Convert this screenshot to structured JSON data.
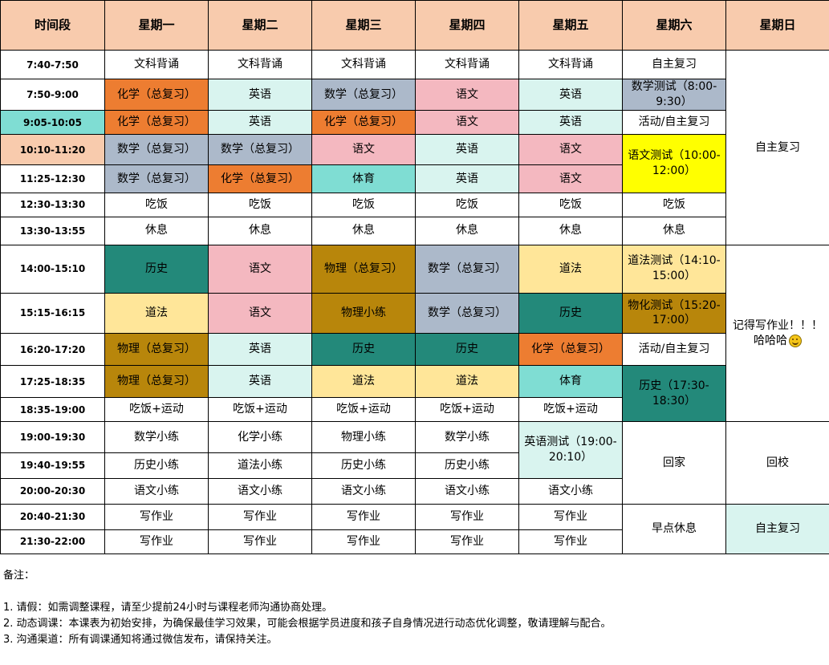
{
  "colors": {
    "header": "#f8cbad",
    "orange": "#ed7d31",
    "lightcyan": "#d9f4ef",
    "slate": "#acb9ca",
    "pink": "#f4b8c0",
    "cyan": "#7fddd3",
    "yellow": "#ffff00",
    "teal": "#23897a",
    "olive": "#b8860b",
    "beige": "#ffe699",
    "peach": "#f8cbad",
    "white": "#ffffff"
  },
  "headers": [
    "时间段",
    "星期一",
    "星期二",
    "星期三",
    "星期四",
    "星期五",
    "星期六",
    "星期日"
  ],
  "times": [
    "7:40-7:50",
    "7:50-9:00",
    "9:05-10:05",
    "10:10-11:20",
    "11:25-12:30",
    "12:30-13:30",
    "13:30-13:55",
    "14:00-15:10",
    "15:15-16:15",
    "16:20-17:20",
    "17:25-18:35",
    "18:35-19:00",
    "19:00-19:30",
    "19:40-19:55",
    "20:00-20:30",
    "20:40-21:30",
    "21:30-22:00"
  ],
  "cells": [
    [
      {
        "t": "文科背诵",
        "bg": "white",
        "c": 1
      },
      {
        "t": "文科背诵",
        "bg": "white",
        "c": 2
      },
      {
        "t": "文科背诵",
        "bg": "white",
        "c": 3
      },
      {
        "t": "文科背诵",
        "bg": "white",
        "c": 4
      },
      {
        "t": "文科背诵",
        "bg": "white",
        "c": 5
      },
      {
        "t": "自主复习",
        "bg": "white",
        "c": 6
      },
      {
        "t": "自主复习",
        "bg": "white",
        "c": 7,
        "rs": 7
      }
    ],
    [
      {
        "t": "化学（总复习）",
        "bg": "orange",
        "c": 1
      },
      {
        "t": "英语",
        "bg": "lightcyan",
        "c": 2
      },
      {
        "t": "数学（总复习）",
        "bg": "slate",
        "c": 3
      },
      {
        "t": "语文",
        "bg": "pink",
        "c": 4
      },
      {
        "t": "英语",
        "bg": "lightcyan",
        "c": 5
      },
      {
        "t": "数学测试（8:00-9:30）",
        "bg": "slate",
        "c": 6
      }
    ],
    [
      {
        "t": "化学（总复习）",
        "bg": "orange",
        "c": 1
      },
      {
        "t": "英语",
        "bg": "lightcyan",
        "c": 2
      },
      {
        "t": "化学（总复习）",
        "bg": "orange",
        "c": 3
      },
      {
        "t": "语文",
        "bg": "pink",
        "c": 4
      },
      {
        "t": "英语",
        "bg": "lightcyan",
        "c": 5
      },
      {
        "t": "活动/自主复习",
        "bg": "white",
        "c": 6
      }
    ],
    [
      {
        "t": "数学（总复习）",
        "bg": "slate",
        "c": 1
      },
      {
        "t": "数学（总复习）",
        "bg": "slate",
        "c": 2
      },
      {
        "t": "语文",
        "bg": "pink",
        "c": 3
      },
      {
        "t": "英语",
        "bg": "lightcyan",
        "c": 4
      },
      {
        "t": "语文",
        "bg": "pink",
        "c": 5
      },
      {
        "t": "语文测试（10:00-12:00）",
        "bg": "yellow",
        "c": 6,
        "rs": 2
      }
    ],
    [
      {
        "t": "数学（总复习）",
        "bg": "slate",
        "c": 1
      },
      {
        "t": "化学（总复习）",
        "bg": "orange",
        "c": 2
      },
      {
        "t": "体育",
        "bg": "cyan",
        "c": 3
      },
      {
        "t": "英语",
        "bg": "lightcyan",
        "c": 4
      },
      {
        "t": "语文",
        "bg": "pink",
        "c": 5
      }
    ],
    [
      {
        "t": "吃饭",
        "bg": "white",
        "c": 1
      },
      {
        "t": "吃饭",
        "bg": "white",
        "c": 2
      },
      {
        "t": "吃饭",
        "bg": "white",
        "c": 3
      },
      {
        "t": "吃饭",
        "bg": "white",
        "c": 4
      },
      {
        "t": "吃饭",
        "bg": "white",
        "c": 5
      },
      {
        "t": "吃饭",
        "bg": "white",
        "c": 6
      }
    ],
    [
      {
        "t": "休息",
        "bg": "white",
        "c": 1
      },
      {
        "t": "休息",
        "bg": "white",
        "c": 2
      },
      {
        "t": "休息",
        "bg": "white",
        "c": 3
      },
      {
        "t": "休息",
        "bg": "white",
        "c": 4
      },
      {
        "t": "休息",
        "bg": "white",
        "c": 5
      },
      {
        "t": "休息",
        "bg": "white",
        "c": 6
      }
    ],
    [
      {
        "t": "历史",
        "bg": "teal",
        "c": 1
      },
      {
        "t": "语文",
        "bg": "pink",
        "c": 2
      },
      {
        "t": "物理（总复习）",
        "bg": "olive",
        "c": 3
      },
      {
        "t": "数学（总复习）",
        "bg": "slate",
        "c": 4
      },
      {
        "t": "道法",
        "bg": "beige",
        "c": 5
      },
      {
        "t": "道法测试（14:10-15:00）",
        "bg": "beige",
        "c": 6
      },
      {
        "t": "记得写作业！！！哈哈哈",
        "bg": "white",
        "c": 7,
        "rs": 5,
        "smile": true
      }
    ],
    [
      {
        "t": "道法",
        "bg": "beige",
        "c": 1
      },
      {
        "t": "语文",
        "bg": "pink",
        "c": 2
      },
      {
        "t": "物理小练",
        "bg": "olive",
        "c": 3
      },
      {
        "t": "数学（总复习）",
        "bg": "slate",
        "c": 4
      },
      {
        "t": "历史",
        "bg": "teal",
        "c": 5
      },
      {
        "t": "物化测试（15:20-17:00）",
        "bg": "olive",
        "c": 6
      }
    ],
    [
      {
        "t": "物理（总复习）",
        "bg": "olive",
        "c": 1
      },
      {
        "t": "英语",
        "bg": "lightcyan",
        "c": 2
      },
      {
        "t": "历史",
        "bg": "teal",
        "c": 3
      },
      {
        "t": "历史",
        "bg": "teal",
        "c": 4
      },
      {
        "t": "化学（总复习）",
        "bg": "orange",
        "c": 5
      },
      {
        "t": "活动/自主复习",
        "bg": "white",
        "c": 6
      }
    ],
    [
      {
        "t": "物理（总复习）",
        "bg": "olive",
        "c": 1
      },
      {
        "t": "英语",
        "bg": "lightcyan",
        "c": 2
      },
      {
        "t": "道法",
        "bg": "beige",
        "c": 3
      },
      {
        "t": "道法",
        "bg": "beige",
        "c": 4
      },
      {
        "t": "体育",
        "bg": "cyan",
        "c": 5
      },
      {
        "t": "历史（17:30-18:30）",
        "bg": "teal",
        "c": 6,
        "rs": 2
      }
    ],
    [
      {
        "t": "吃饭+运动",
        "bg": "white",
        "c": 1
      },
      {
        "t": "吃饭+运动",
        "bg": "white",
        "c": 2
      },
      {
        "t": "吃饭+运动",
        "bg": "white",
        "c": 3
      },
      {
        "t": "吃饭+运动",
        "bg": "white",
        "c": 4
      },
      {
        "t": "吃饭+运动",
        "bg": "white",
        "c": 5
      }
    ],
    [
      {
        "t": "数学小练",
        "bg": "white",
        "c": 1
      },
      {
        "t": "化学小练",
        "bg": "white",
        "c": 2
      },
      {
        "t": "物理小练",
        "bg": "white",
        "c": 3
      },
      {
        "t": "数学小练",
        "bg": "white",
        "c": 4
      },
      {
        "t": "英语测试（19:00-20:10）",
        "bg": "lightcyan",
        "c": 5,
        "rs": 2
      },
      {
        "t": "回家",
        "bg": "white",
        "c": 6,
        "rs": 3
      },
      {
        "t": "回校",
        "bg": "white",
        "c": 7,
        "rs": 3
      }
    ],
    [
      {
        "t": "历史小练",
        "bg": "white",
        "c": 1
      },
      {
        "t": "道法小练",
        "bg": "white",
        "c": 2
      },
      {
        "t": "历史小练",
        "bg": "white",
        "c": 3
      },
      {
        "t": "历史小练",
        "bg": "white",
        "c": 4
      }
    ],
    [
      {
        "t": "语文小练",
        "bg": "white",
        "c": 1
      },
      {
        "t": "语文小练",
        "bg": "white",
        "c": 2
      },
      {
        "t": "语文小练",
        "bg": "white",
        "c": 3
      },
      {
        "t": "语文小练",
        "bg": "white",
        "c": 4
      },
      {
        "t": "语文小练",
        "bg": "white",
        "c": 5
      }
    ],
    [
      {
        "t": "写作业",
        "bg": "white",
        "c": 1
      },
      {
        "t": "写作业",
        "bg": "white",
        "c": 2
      },
      {
        "t": "写作业",
        "bg": "white",
        "c": 3
      },
      {
        "t": "写作业",
        "bg": "white",
        "c": 4
      },
      {
        "t": "写作业",
        "bg": "white",
        "c": 5
      },
      {
        "t": "早点休息",
        "bg": "white",
        "c": 6,
        "rs": 2
      },
      {
        "t": "自主复习",
        "bg": "lightcyan",
        "c": 7,
        "rs": 2
      }
    ],
    [
      {
        "t": "写作业",
        "bg": "white",
        "c": 1
      },
      {
        "t": "写作业",
        "bg": "white",
        "c": 2
      },
      {
        "t": "写作业",
        "bg": "white",
        "c": 3
      },
      {
        "t": "写作业",
        "bg": "white",
        "c": 4
      },
      {
        "t": "写作业",
        "bg": "white",
        "c": 5
      }
    ]
  ],
  "time_bg": {
    "2": "cyan",
    "3": "peach"
  },
  "notes": {
    "title": "备注：",
    "items": [
      "1. 请假：如需调整课程，请至少提前24小时与课程老师沟通协商处理。",
      "2. 动态调课：本课表为初始安排，为确保最佳学习效果，可能会根据学员进度和孩子自身情况进行动态优化调整，敬请理解与配合。",
      "3. 沟通渠道：所有调课通知将通过微信发布，请保持关注。"
    ]
  }
}
